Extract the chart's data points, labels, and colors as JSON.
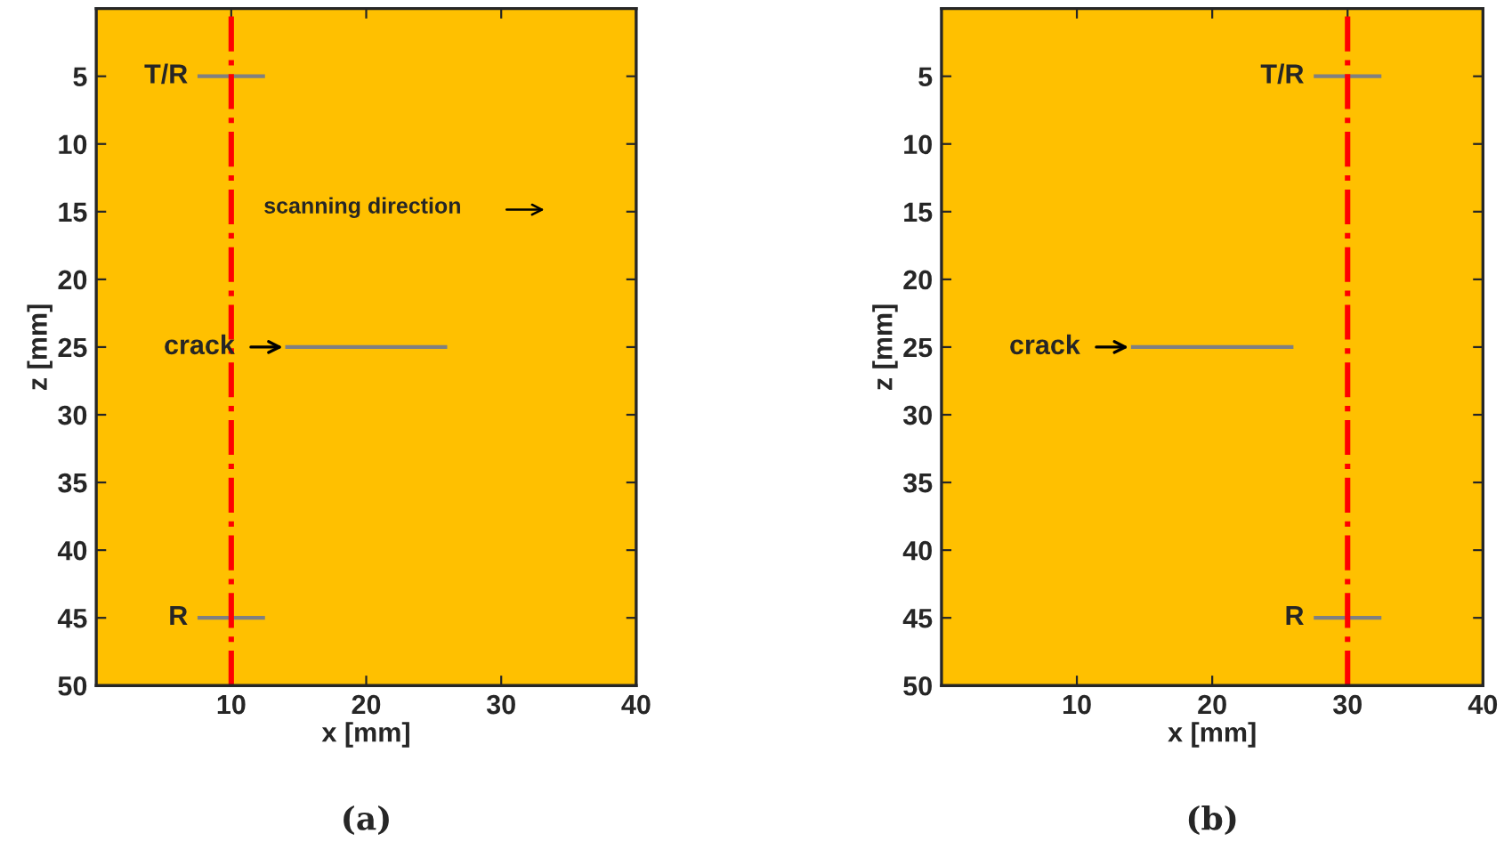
{
  "chart_data": [
    {
      "type": "line",
      "title": "(a)",
      "xlabel": "x [mm]",
      "ylabel": "z [mm]",
      "xlim": [
        0,
        40
      ],
      "ylim": [
        50,
        0
      ],
      "xticks": [
        10,
        20,
        30,
        40
      ],
      "yticks": [
        5,
        10,
        15,
        20,
        25,
        30,
        35,
        40,
        45,
        50
      ],
      "grid": false,
      "legend": false,
      "marker": "none",
      "series": [
        {
          "name": "T/R",
          "color": "#808080",
          "x": [
            7.5,
            12.5
          ],
          "values": [
            5,
            5
          ]
        },
        {
          "name": "R",
          "color": "#808080",
          "x": [
            7.5,
            12.5
          ],
          "values": [
            45,
            45
          ]
        },
        {
          "color": "#808080",
          "x": [
            14,
            26
          ],
          "values": [
            25,
            25
          ]
        }
      ],
      "ref_lines": [
        {
          "axis": "x",
          "value": 10,
          "color": "#ff0000",
          "line_style": "dashdot"
        }
      ],
      "annotations": [
        {
          "text": "crack",
          "x": 14,
          "y": 25
        },
        "scanning direction"
      ]
    },
    {
      "type": "line",
      "title": "(b)",
      "xlabel": "x [mm]",
      "ylabel": "z [mm]",
      "xlim": [
        0,
        40
      ],
      "ylim": [
        50,
        0
      ],
      "xticks": [
        10,
        20,
        30,
        40
      ],
      "yticks": [
        5,
        10,
        15,
        20,
        25,
        30,
        35,
        40,
        45,
        50
      ],
      "grid": false,
      "legend": false,
      "marker": "none",
      "series": [
        {
          "name": "T/R",
          "color": "#808080",
          "x": [
            27.5,
            32.5
          ],
          "values": [
            5,
            5
          ]
        },
        {
          "name": "R",
          "color": "#808080",
          "x": [
            27.5,
            32.5
          ],
          "values": [
            45,
            45
          ]
        },
        {
          "color": "#808080",
          "x": [
            14,
            26
          ],
          "values": [
            25,
            25
          ]
        }
      ],
      "ref_lines": [
        {
          "axis": "x",
          "value": 30,
          "color": "#ff0000",
          "line_style": "dashdot"
        }
      ],
      "annotations": [
        {
          "text": "crack",
          "x": 14,
          "y": 25
        }
      ]
    }
  ]
}
